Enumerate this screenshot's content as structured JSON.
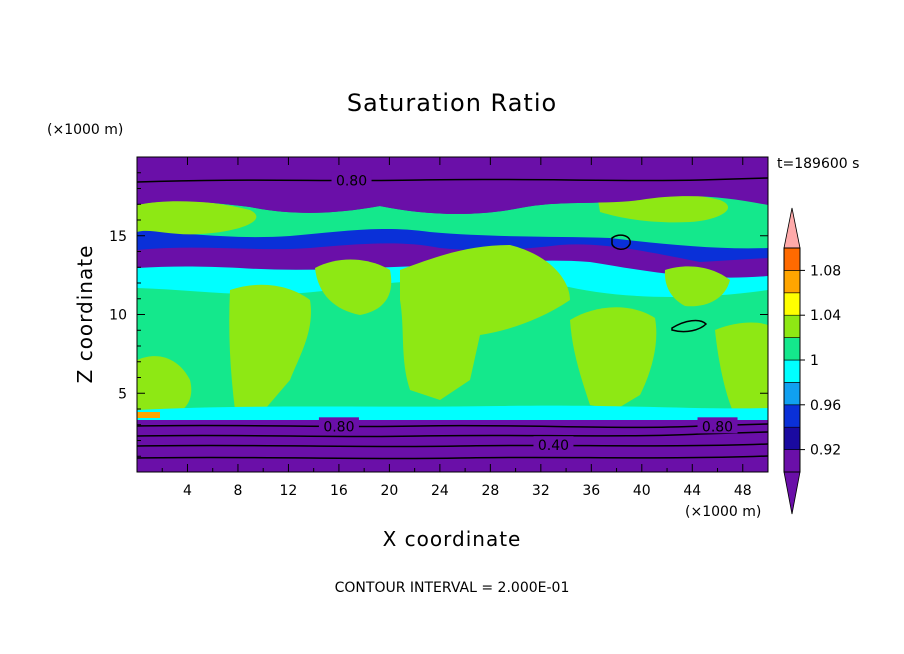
{
  "chart_data": {
    "type": "heatmap",
    "title": "Saturation Ratio",
    "xlabel": "X coordinate",
    "ylabel": "Z coordinate",
    "x_unit_label": "(×1000 m)",
    "y_unit_label": "(×1000 m)",
    "time_label": "t=189600 s",
    "footer": "CONTOUR INTERVAL = 2.000E-01",
    "xlim": [
      0,
      50
    ],
    "ylim": [
      0,
      20
    ],
    "x_ticks": [
      4,
      8,
      12,
      16,
      20,
      24,
      28,
      32,
      36,
      40,
      44,
      48
    ],
    "y_ticks": [
      5,
      10,
      15
    ],
    "contour_labels": [
      {
        "text": "0.80",
        "x": 17,
        "z": 18.5
      },
      {
        "text": "0.80",
        "x": 16,
        "z": 2.9
      },
      {
        "text": "0.80",
        "x": 46,
        "z": 2.9
      },
      {
        "text": "0.40",
        "x": 33,
        "z": 1.7
      }
    ],
    "colorbar": {
      "levels": [
        0.9,
        0.92,
        0.94,
        0.96,
        0.98,
        1.0,
        1.02,
        1.04,
        1.06,
        1.08,
        1.1
      ],
      "tick_labels": [
        "0.92",
        "0.96",
        "1",
        "1.04",
        "1.08"
      ],
      "tick_values": [
        0.92,
        0.96,
        1.0,
        1.04,
        1.08
      ],
      "colors": [
        "#6a0fa8",
        "#1a0aa0",
        "#0a30d8",
        "#10a0f0",
        "#00ffff",
        "#14e88c",
        "#8ee814",
        "#ffff00",
        "#ffa500",
        "#ff6a00",
        "#ff2a2a"
      ],
      "under_color": "#6a0fa8",
      "over_color": "#ffaaaa"
    }
  }
}
